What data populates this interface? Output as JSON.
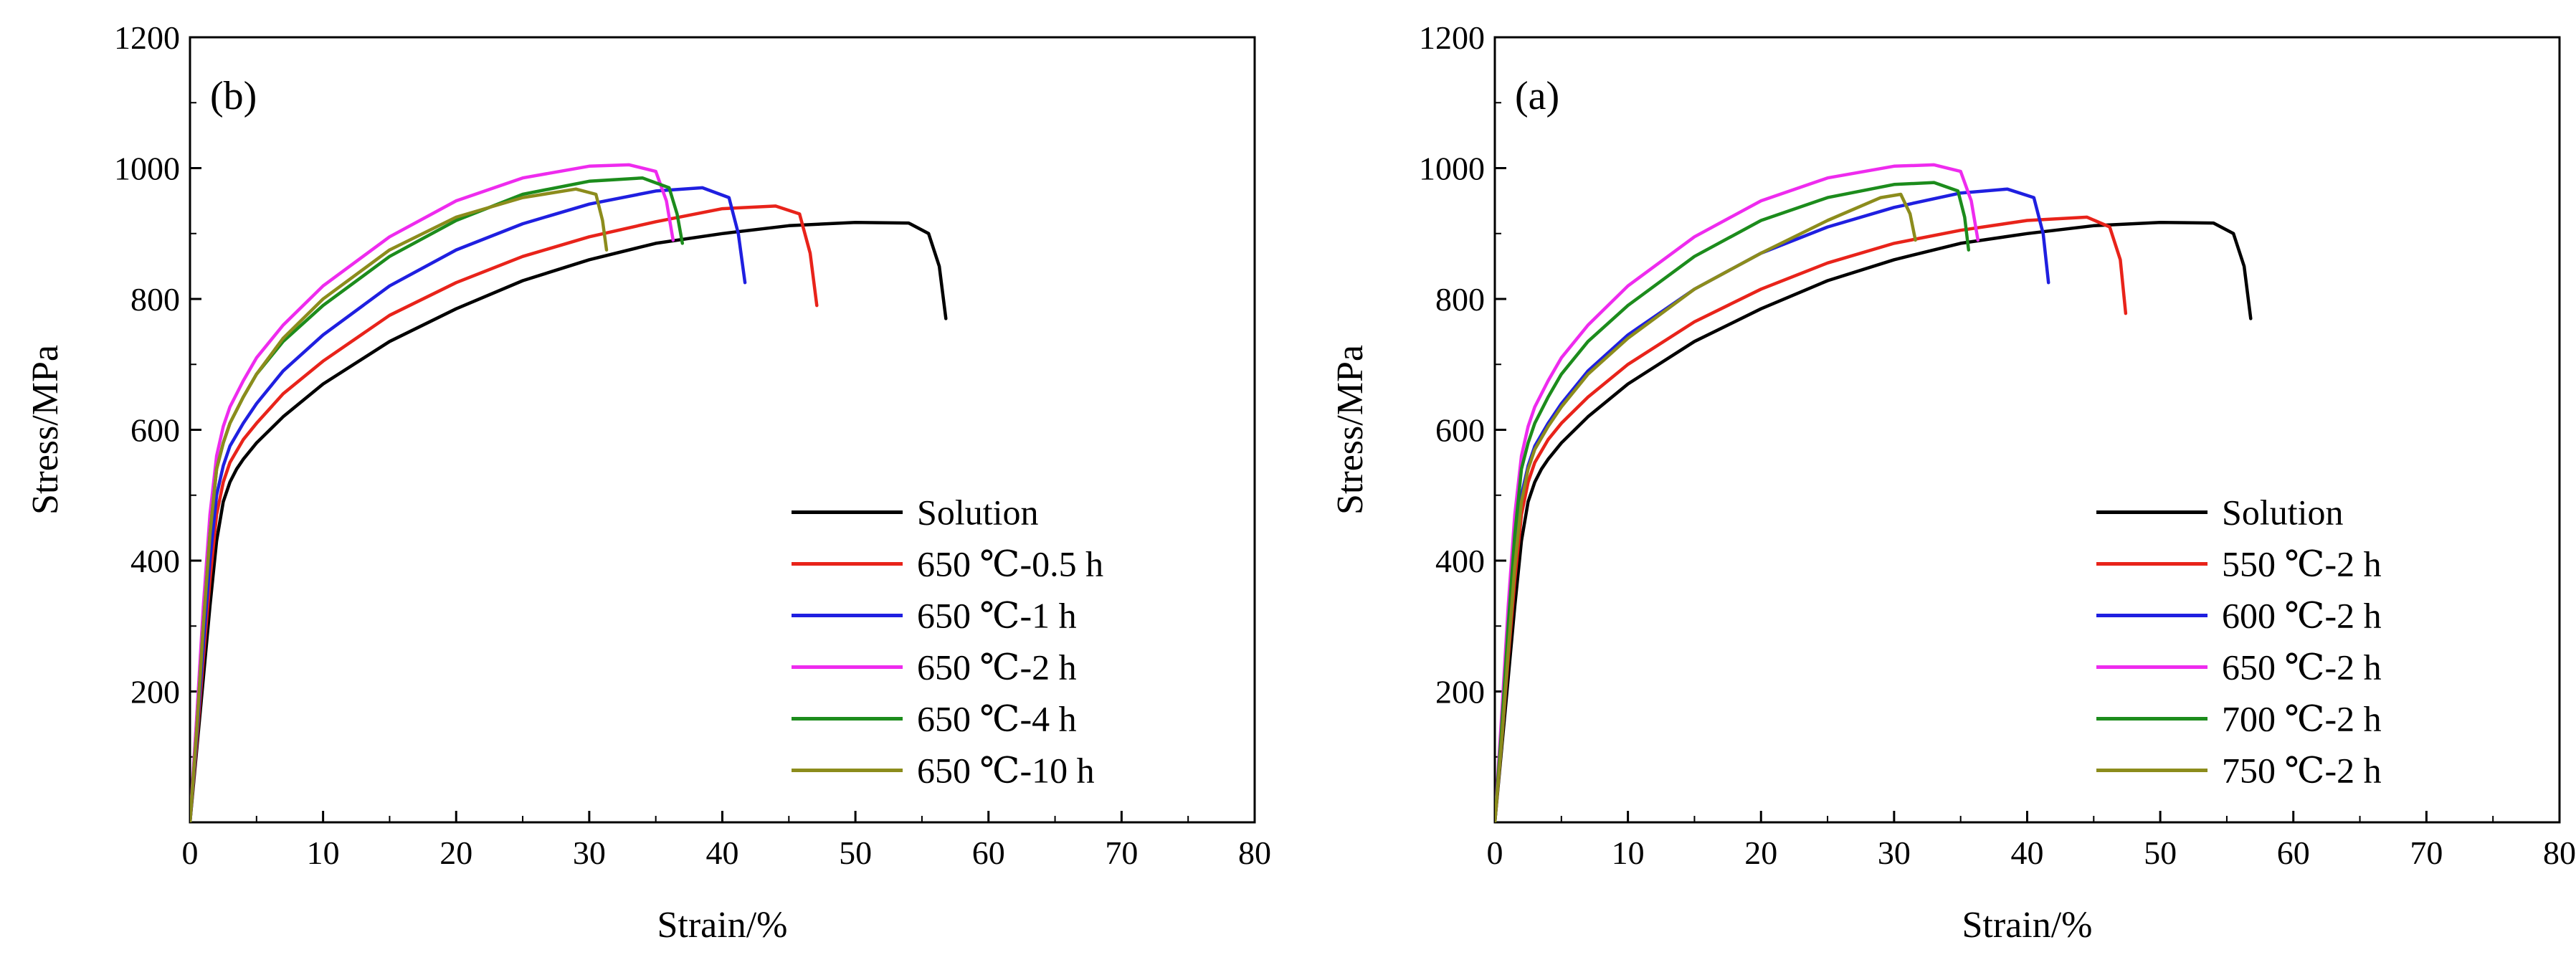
{
  "chart_data": [
    {
      "type": "line",
      "panel_label": "(b)",
      "xlabel": "Strain/%",
      "ylabel": "Stress/MPa",
      "xlim": [
        0,
        80
      ],
      "ylim": [
        0,
        1200
      ],
      "xticks": [
        0,
        10,
        20,
        30,
        40,
        50,
        60,
        70,
        80
      ],
      "yticks": [
        200,
        400,
        600,
        800,
        1000,
        1200
      ],
      "legend_position": "bottom-right",
      "series": [
        {
          "name": "Solution",
          "color": "#000000",
          "x": [
            0,
            0.5,
            1,
            1.5,
            2,
            2.5,
            3,
            3.5,
            4,
            5,
            7,
            10,
            15,
            20,
            25,
            30,
            35,
            40,
            45,
            50,
            54,
            55.5,
            56.3,
            56.8
          ],
          "y": [
            0,
            110,
            220,
            330,
            430,
            490,
            520,
            540,
            555,
            580,
            620,
            670,
            735,
            785,
            828,
            860,
            885,
            900,
            912,
            917,
            916,
            900,
            850,
            770
          ]
        },
        {
          "name": "650 ℃-0.5 h",
          "color": "#e8231a",
          "x": [
            0,
            0.5,
            1,
            1.5,
            2,
            2.5,
            3,
            4,
            5,
            7,
            10,
            15,
            20,
            25,
            30,
            35,
            40,
            44,
            45.8,
            46.6,
            47.1
          ],
          "y": [
            0,
            120,
            250,
            370,
            470,
            520,
            550,
            585,
            610,
            655,
            705,
            775,
            825,
            865,
            895,
            918,
            938,
            942,
            930,
            870,
            790
          ]
        },
        {
          "name": "650 ℃-1 h",
          "color": "#1f1fe0",
          "x": [
            0,
            0.5,
            1,
            1.5,
            2,
            2.5,
            3,
            4,
            5,
            7,
            10,
            15,
            20,
            25,
            30,
            35,
            38.5,
            40.5,
            41.2,
            41.7
          ],
          "y": [
            0,
            130,
            270,
            400,
            500,
            545,
            575,
            610,
            640,
            690,
            745,
            820,
            875,
            915,
            945,
            965,
            970,
            955,
            900,
            825
          ]
        },
        {
          "name": "650 ℃-2 h",
          "color": "#ee2bee",
          "x": [
            0,
            0.5,
            1,
            1.5,
            2,
            2.5,
            3,
            4,
            5,
            7,
            10,
            15,
            20,
            25,
            30,
            33,
            35,
            35.8,
            36.3
          ],
          "y": [
            0,
            160,
            330,
            470,
            560,
            605,
            635,
            675,
            710,
            760,
            820,
            895,
            950,
            985,
            1003,
            1005,
            995,
            950,
            890
          ]
        },
        {
          "name": "650 ℃-4 h",
          "color": "#1c8c1c",
          "x": [
            0,
            0.5,
            1,
            1.5,
            2,
            2.5,
            3,
            4,
            5,
            7,
            10,
            15,
            20,
            25,
            30,
            34,
            36,
            36.6,
            37
          ],
          "y": [
            0,
            140,
            300,
            440,
            540,
            580,
            610,
            650,
            685,
            735,
            790,
            865,
            920,
            960,
            980,
            985,
            970,
            930,
            885
          ]
        },
        {
          "name": "650 ℃-10 h",
          "color": "#8c8c1c",
          "x": [
            0,
            0.5,
            1,
            1.5,
            2,
            2.5,
            3,
            4,
            5,
            7,
            10,
            15,
            20,
            25,
            29,
            30.5,
            31,
            31.3
          ],
          "y": [
            0,
            140,
            300,
            440,
            540,
            580,
            610,
            650,
            685,
            740,
            800,
            875,
            925,
            955,
            968,
            960,
            920,
            875
          ]
        }
      ]
    },
    {
      "type": "line",
      "panel_label": "(a)",
      "xlabel": "Strain/%",
      "ylabel": "Stress/MPa",
      "xlim": [
        0,
        80
      ],
      "ylim": [
        0,
        1200
      ],
      "xticks": [
        0,
        10,
        20,
        30,
        40,
        50,
        60,
        70,
        80
      ],
      "yticks": [
        200,
        400,
        600,
        800,
        1000,
        1200
      ],
      "legend_position": "bottom-right",
      "series": [
        {
          "name": "Solution",
          "color": "#000000",
          "x": [
            0,
            0.5,
            1,
            1.5,
            2,
            2.5,
            3,
            3.5,
            4,
            5,
            7,
            10,
            15,
            20,
            25,
            30,
            35,
            40,
            45,
            50,
            54,
            55.5,
            56.3,
            56.8
          ],
          "y": [
            0,
            110,
            220,
            330,
            430,
            490,
            520,
            540,
            555,
            580,
            620,
            670,
            735,
            785,
            828,
            860,
            885,
            900,
            912,
            917,
            916,
            900,
            850,
            770
          ]
        },
        {
          "name": "550 ℃-2 h",
          "color": "#e8231a",
          "x": [
            0,
            0.5,
            1,
            1.5,
            2,
            2.5,
            3,
            4,
            5,
            7,
            10,
            15,
            20,
            25,
            30,
            35,
            40,
            44.5,
            46.2,
            47,
            47.4
          ],
          "y": [
            0,
            120,
            250,
            370,
            470,
            520,
            550,
            585,
            610,
            650,
            700,
            765,
            815,
            855,
            885,
            905,
            920,
            925,
            910,
            860,
            778
          ]
        },
        {
          "name": "600 ℃-2 h",
          "color": "#1f1fe0",
          "x": [
            0,
            0.5,
            1,
            1.5,
            2,
            2.5,
            3,
            4,
            5,
            7,
            10,
            15,
            20,
            25,
            30,
            35,
            38.5,
            40.5,
            41.2,
            41.6
          ],
          "y": [
            0,
            130,
            270,
            400,
            500,
            545,
            575,
            610,
            640,
            690,
            745,
            815,
            870,
            910,
            940,
            962,
            968,
            955,
            900,
            825
          ]
        },
        {
          "name": "650 ℃-2 h",
          "color": "#ee2bee",
          "x": [
            0,
            0.5,
            1,
            1.5,
            2,
            2.5,
            3,
            4,
            5,
            7,
            10,
            15,
            20,
            25,
            30,
            33,
            35,
            35.8,
            36.3
          ],
          "y": [
            0,
            160,
            330,
            470,
            560,
            605,
            635,
            675,
            710,
            760,
            820,
            895,
            950,
            985,
            1003,
            1005,
            995,
            950,
            890
          ]
        },
        {
          "name": "700 ℃-2 h",
          "color": "#1c8c1c",
          "x": [
            0,
            0.5,
            1,
            1.5,
            2,
            2.5,
            3,
            4,
            5,
            7,
            10,
            15,
            20,
            25,
            30,
            33,
            34.8,
            35.3,
            35.6
          ],
          "y": [
            0,
            140,
            300,
            440,
            540,
            580,
            610,
            650,
            685,
            735,
            790,
            865,
            920,
            955,
            975,
            978,
            965,
            925,
            875
          ]
        },
        {
          "name": "750 ℃-2 h",
          "color": "#8c8c1c",
          "x": [
            0,
            0.5,
            1,
            1.5,
            2,
            2.5,
            3,
            4,
            5,
            7,
            10,
            15,
            20,
            25,
            29,
            30.5,
            31.2,
            31.6
          ],
          "y": [
            0,
            120,
            260,
            390,
            490,
            540,
            570,
            605,
            635,
            685,
            740,
            815,
            870,
            920,
            955,
            960,
            930,
            890
          ]
        }
      ]
    }
  ]
}
